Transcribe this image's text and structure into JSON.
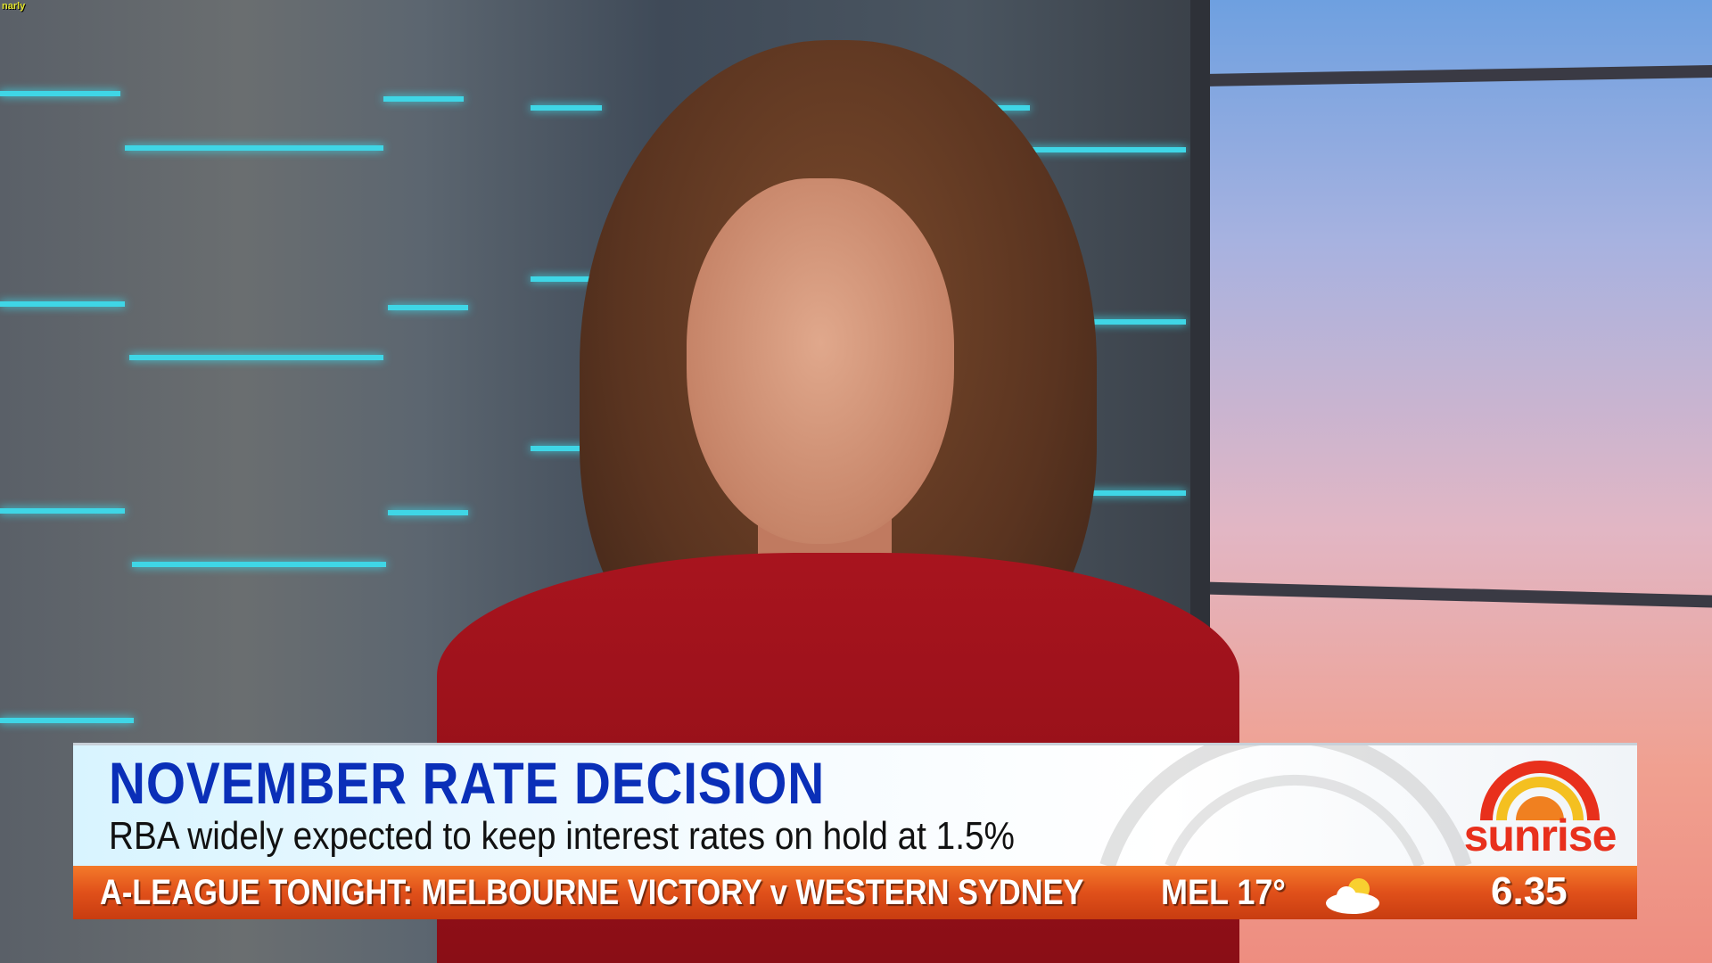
{
  "watermark": "narly",
  "lower_third": {
    "headline": "NOVEMBER RATE DECISION",
    "subline": "RBA widely expected to keep interest rates on hold at 1.5%"
  },
  "logo": {
    "text": "sunrise"
  },
  "ticker": {
    "text": "A-LEAGUE TONIGHT: MELBOURNE VICTORY v WESTERN SYDNEY",
    "weather": "MEL 17°",
    "weather_icon": "partly-cloudy-icon",
    "time": "6.35"
  },
  "colors": {
    "headline": "#0a2fb8",
    "ticker": "#e0501a",
    "logo": "#e8301c"
  }
}
